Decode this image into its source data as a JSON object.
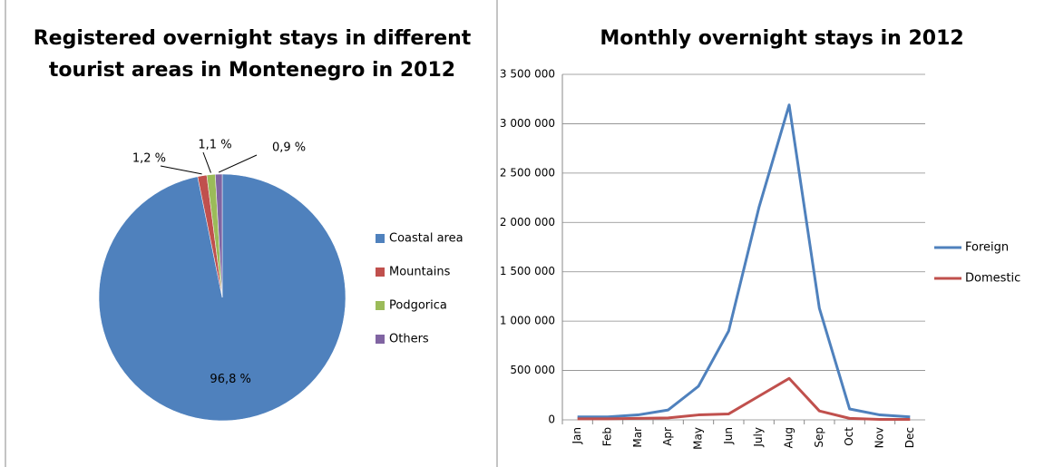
{
  "chart_data": [
    {
      "type": "pie",
      "title": [
        "Registered overnight stays in different",
        "tourist  areas in Montenegro  in 2012"
      ],
      "categories": [
        "Coastal area",
        "Mountains",
        "Podgorica",
        "Others"
      ],
      "values": [
        96.8,
        1.2,
        1.1,
        0.9
      ],
      "value_labels": [
        "96,8 %",
        "1,2 %",
        "1,1 %",
        "0,9 %"
      ],
      "colors": [
        "#4f81bd",
        "#c0504d",
        "#9bbb59",
        "#8064a2"
      ],
      "legend": "right"
    },
    {
      "type": "line",
      "title": "Monthly overnight stays in 2012",
      "categories": [
        "Jan",
        "Feb",
        "Mar",
        "Apr",
        "May",
        "Jun",
        "July",
        "Aug",
        "Sep",
        "Oct",
        "Nov",
        "Dec"
      ],
      "series": [
        {
          "name": "Foreign",
          "color": "#4f81bd",
          "values": [
            30000,
            30000,
            50000,
            100000,
            340000,
            900000,
            2150000,
            3190000,
            1130000,
            110000,
            50000,
            30000
          ]
        },
        {
          "name": "Domestic",
          "color": "#c0504d",
          "values": [
            10000,
            10000,
            15000,
            20000,
            50000,
            60000,
            240000,
            420000,
            90000,
            15000,
            5000,
            5000
          ]
        }
      ],
      "ylim": [
        0,
        3500000
      ],
      "yticks": [
        0,
        {
          "value": 500000,
          "label": "500 000"
        },
        {
          "value": 1000000,
          "label": "1 000 000"
        },
        {
          "value": 1500000,
          "label": "1 500 000"
        },
        {
          "value": 2000000,
          "label": "2 000 000"
        },
        {
          "value": 2500000,
          "label": "2 500 000"
        },
        {
          "value": 3000000,
          "label": "3 000 000"
        },
        {
          "value": 3500000,
          "label": "3 500 000"
        }
      ],
      "grid": true,
      "legend": "right"
    }
  ]
}
